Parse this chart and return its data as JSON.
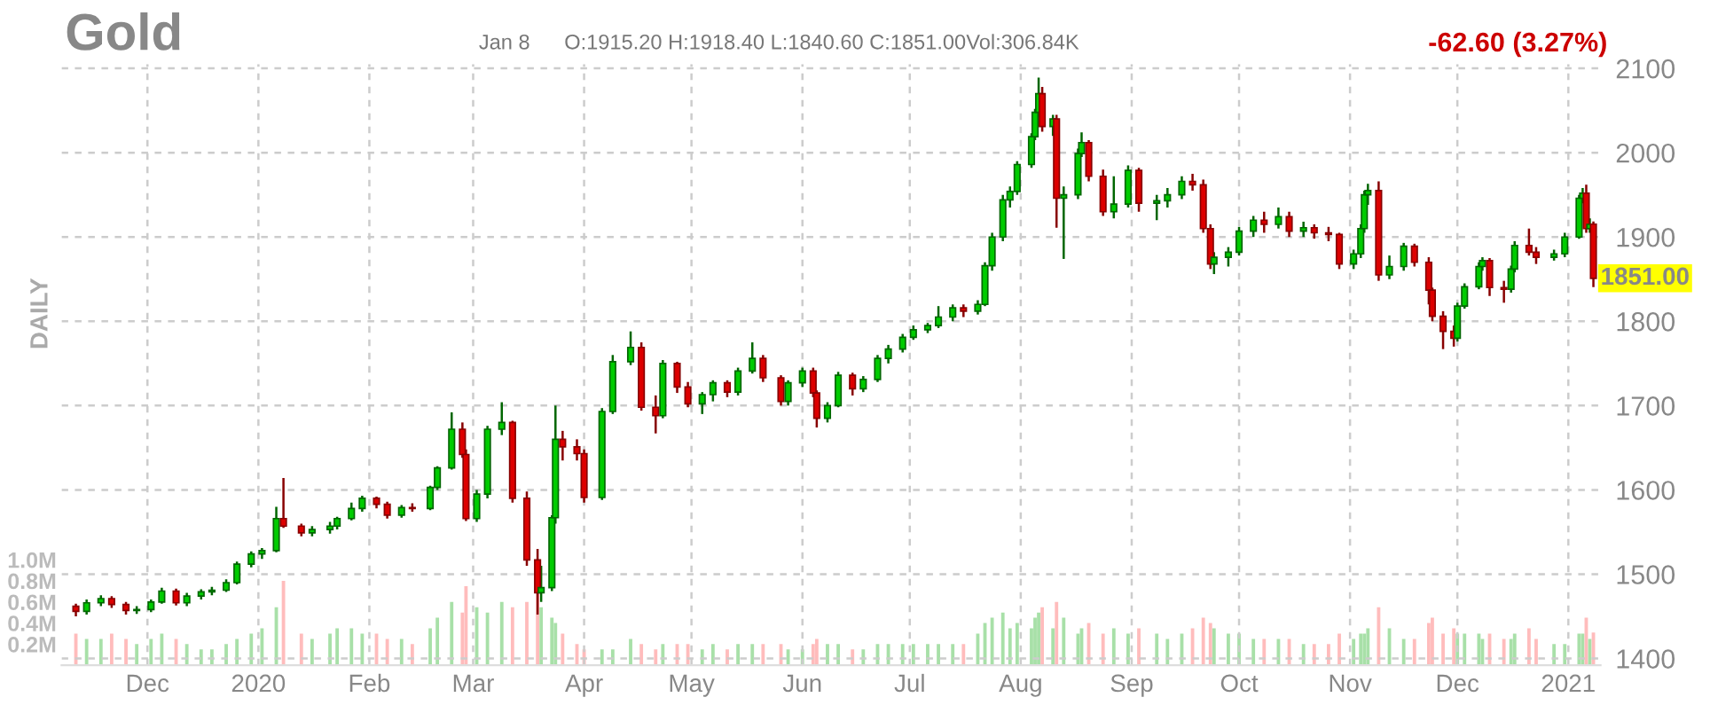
{
  "chart_data": {
    "type": "candlestick",
    "title": "Gold",
    "annotations": [
      "Jan 8",
      "O:1915.20 H:1918.40 L:1840.60 C:1851.00",
      "Vol:306.84K",
      "-62.60 (3.27%)",
      "DAILY",
      {
        "text": "1851.00",
        "x": "2021-01-08",
        "y": 1851
      }
    ],
    "x": [
      "2019-11-11",
      "2019-11-14",
      "2019-11-18",
      "2019-11-21",
      "2019-11-25",
      "2019-11-28",
      "2019-12-02",
      "2019-12-05",
      "2019-12-09",
      "2019-12-12",
      "2019-12-16",
      "2019-12-19",
      "2019-12-23",
      "2019-12-26",
      "2019-12-30",
      "2020-01-02",
      "2020-01-06",
      "2020-01-08",
      "2020-01-13",
      "2020-01-16",
      "2020-01-21",
      "2020-01-23",
      "2020-01-27",
      "2020-01-30",
      "2020-02-03",
      "2020-02-06",
      "2020-02-10",
      "2020-02-13",
      "2020-02-18",
      "2020-02-20",
      "2020-02-24",
      "2020-02-27",
      "2020-02-28",
      "2020-03-02",
      "2020-03-05",
      "2020-03-09",
      "2020-03-12",
      "2020-03-16",
      "2020-03-19",
      "2020-03-20",
      "2020-03-23",
      "2020-03-24",
      "2020-03-26",
      "2020-03-30",
      "2020-04-01",
      "2020-04-06",
      "2020-04-09",
      "2020-04-14",
      "2020-04-17",
      "2020-04-21",
      "2020-04-23",
      "2020-04-27",
      "2020-04-30",
      "2020-05-04",
      "2020-05-07",
      "2020-05-11",
      "2020-05-14",
      "2020-05-18",
      "2020-05-21",
      "2020-05-26",
      "2020-05-28",
      "2020-06-01",
      "2020-06-04",
      "2020-06-05",
      "2020-06-08",
      "2020-06-11",
      "2020-06-15",
      "2020-06-18",
      "2020-06-22",
      "2020-06-25",
      "2020-06-29",
      "2020-07-02",
      "2020-07-06",
      "2020-07-09",
      "2020-07-13",
      "2020-07-16",
      "2020-07-20",
      "2020-07-22",
      "2020-07-24",
      "2020-07-27",
      "2020-07-29",
      "2020-07-31",
      "2020-08-04",
      "2020-08-05",
      "2020-08-06",
      "2020-08-07",
      "2020-08-10",
      "2020-08-11",
      "2020-08-13",
      "2020-08-17",
      "2020-08-18",
      "2020-08-20",
      "2020-08-24",
      "2020-08-27",
      "2020-08-31",
      "2020-09-03",
      "2020-09-08",
      "2020-09-11",
      "2020-09-15",
      "2020-09-18",
      "2020-09-21",
      "2020-09-23",
      "2020-09-24",
      "2020-09-28",
      "2020-10-01",
      "2020-10-05",
      "2020-10-08",
      "2020-10-12",
      "2020-10-15",
      "2020-10-19",
      "2020-10-22",
      "2020-10-26",
      "2020-10-29",
      "2020-11-02",
      "2020-11-04",
      "2020-11-05",
      "2020-11-06",
      "2020-11-09",
      "2020-11-12",
      "2020-11-16",
      "2020-11-19",
      "2020-11-23",
      "2020-11-24",
      "2020-11-27",
      "2020-11-30",
      "2020-12-01",
      "2020-12-03",
      "2020-12-07",
      "2020-12-08",
      "2020-12-10",
      "2020-12-14",
      "2020-12-16",
      "2020-12-17",
      "2020-12-21",
      "2020-12-23",
      "2020-12-28",
      "2020-12-31",
      "2021-01-04",
      "2021-01-05",
      "2021-01-06",
      "2021-01-07",
      "2021-01-08"
    ],
    "ohlc": [
      [
        1462,
        1465,
        1450,
        1456
      ],
      [
        1456,
        1470,
        1452,
        1466
      ],
      [
        1466,
        1475,
        1462,
        1471
      ],
      [
        1471,
        1474,
        1460,
        1464
      ],
      [
        1464,
        1467,
        1452,
        1457
      ],
      [
        1457,
        1462,
        1453,
        1458
      ],
      [
        1458,
        1470,
        1455,
        1467
      ],
      [
        1467,
        1484,
        1465,
        1480
      ],
      [
        1480,
        1483,
        1463,
        1466
      ],
      [
        1466,
        1478,
        1462,
        1474
      ],
      [
        1474,
        1482,
        1470,
        1479
      ],
      [
        1479,
        1485,
        1475,
        1481
      ],
      [
        1481,
        1494,
        1479,
        1490
      ],
      [
        1490,
        1515,
        1488,
        1512
      ],
      [
        1512,
        1527,
        1508,
        1524
      ],
      [
        1524,
        1531,
        1518,
        1528
      ],
      [
        1528,
        1580,
        1526,
        1566
      ],
      [
        1566,
        1614,
        1555,
        1557
      ],
      [
        1557,
        1560,
        1545,
        1549
      ],
      [
        1549,
        1557,
        1545,
        1553
      ],
      [
        1553,
        1562,
        1548,
        1557
      ],
      [
        1557,
        1568,
        1553,
        1566
      ],
      [
        1566,
        1585,
        1564,
        1578
      ],
      [
        1578,
        1593,
        1574,
        1590
      ],
      [
        1590,
        1592,
        1578,
        1583
      ],
      [
        1583,
        1586,
        1566,
        1570
      ],
      [
        1570,
        1582,
        1567,
        1579
      ],
      [
        1579,
        1584,
        1574,
        1578
      ],
      [
        1578,
        1605,
        1576,
        1603
      ],
      [
        1603,
        1628,
        1600,
        1626
      ],
      [
        1626,
        1692,
        1624,
        1672
      ],
      [
        1672,
        1680,
        1638,
        1642
      ],
      [
        1642,
        1648,
        1563,
        1566
      ],
      [
        1566,
        1600,
        1562,
        1595
      ],
      [
        1595,
        1676,
        1590,
        1672
      ],
      [
        1672,
        1704,
        1665,
        1680
      ],
      [
        1680,
        1682,
        1585,
        1590
      ],
      [
        1590,
        1598,
        1510,
        1517
      ],
      [
        1517,
        1530,
        1452,
        1478
      ],
      [
        1478,
        1510,
        1467,
        1484
      ],
      [
        1484,
        1570,
        1480,
        1567
      ],
      [
        1567,
        1700,
        1560,
        1660
      ],
      [
        1660,
        1670,
        1635,
        1651
      ],
      [
        1651,
        1660,
        1635,
        1643
      ],
      [
        1643,
        1648,
        1585,
        1591
      ],
      [
        1591,
        1697,
        1588,
        1693
      ],
      [
        1693,
        1760,
        1690,
        1752
      ],
      [
        1752,
        1788,
        1748,
        1769
      ],
      [
        1769,
        1775,
        1694,
        1698
      ],
      [
        1698,
        1712,
        1667,
        1688
      ],
      [
        1688,
        1754,
        1685,
        1750
      ],
      [
        1750,
        1752,
        1715,
        1722
      ],
      [
        1722,
        1728,
        1698,
        1702
      ],
      [
        1702,
        1716,
        1690,
        1713
      ],
      [
        1713,
        1730,
        1705,
        1727
      ],
      [
        1727,
        1730,
        1710,
        1716
      ],
      [
        1716,
        1745,
        1712,
        1741
      ],
      [
        1741,
        1775,
        1738,
        1756
      ],
      [
        1756,
        1760,
        1728,
        1733
      ],
      [
        1733,
        1736,
        1700,
        1705
      ],
      [
        1705,
        1730,
        1700,
        1727
      ],
      [
        1727,
        1745,
        1722,
        1741
      ],
      [
        1741,
        1745,
        1710,
        1715
      ],
      [
        1715,
        1718,
        1674,
        1685
      ],
      [
        1685,
        1704,
        1680,
        1700
      ],
      [
        1700,
        1740,
        1698,
        1736
      ],
      [
        1736,
        1739,
        1712,
        1720
      ],
      [
        1720,
        1735,
        1716,
        1731
      ],
      [
        1731,
        1760,
        1728,
        1756
      ],
      [
        1756,
        1772,
        1750,
        1767
      ],
      [
        1767,
        1785,
        1763,
        1781
      ],
      [
        1781,
        1795,
        1778,
        1790
      ],
      [
        1790,
        1798,
        1786,
        1795
      ],
      [
        1795,
        1818,
        1792,
        1805
      ],
      [
        1805,
        1820,
        1800,
        1816
      ],
      [
        1816,
        1820,
        1805,
        1812
      ],
      [
        1812,
        1825,
        1808,
        1820
      ],
      [
        1820,
        1870,
        1818,
        1866
      ],
      [
        1866,
        1905,
        1860,
        1900
      ],
      [
        1900,
        1950,
        1895,
        1944
      ],
      [
        1944,
        1960,
        1935,
        1954
      ],
      [
        1954,
        1990,
        1950,
        1986
      ],
      [
        1986,
        2023,
        1982,
        2019
      ],
      [
        2019,
        2052,
        2015,
        2048
      ],
      [
        2048,
        2089,
        2042,
        2070
      ],
      [
        2070,
        2078,
        2025,
        2031
      ],
      [
        2031,
        2045,
        2020,
        2040
      ],
      [
        2040,
        2045,
        1911,
        1946
      ],
      [
        1946,
        1960,
        1874,
        1950
      ],
      [
        1950,
        2005,
        1945,
        1999
      ],
      [
        1999,
        2024,
        1995,
        2012
      ],
      [
        2012,
        2015,
        1966,
        1972
      ],
      [
        1972,
        1980,
        1925,
        1930
      ],
      [
        1930,
        1972,
        1922,
        1939
      ],
      [
        1939,
        1985,
        1935,
        1979
      ],
      [
        1979,
        1982,
        1930,
        1940
      ],
      [
        1940,
        1950,
        1920,
        1943
      ],
      [
        1943,
        1958,
        1935,
        1950
      ],
      [
        1950,
        1972,
        1945,
        1966
      ],
      [
        1966,
        1975,
        1955,
        1962
      ],
      [
        1962,
        1968,
        1905,
        1910
      ],
      [
        1910,
        1915,
        1862,
        1868
      ],
      [
        1868,
        1882,
        1856,
        1876
      ],
      [
        1876,
        1888,
        1865,
        1882
      ],
      [
        1882,
        1912,
        1878,
        1907
      ],
      [
        1907,
        1925,
        1900,
        1920
      ],
      [
        1920,
        1930,
        1905,
        1915
      ],
      [
        1915,
        1935,
        1910,
        1924
      ],
      [
        1924,
        1930,
        1900,
        1907
      ],
      [
        1907,
        1918,
        1900,
        1911
      ],
      [
        1911,
        1915,
        1898,
        1905
      ],
      [
        1905,
        1912,
        1895,
        1903
      ],
      [
        1903,
        1905,
        1862,
        1868
      ],
      [
        1868,
        1885,
        1862,
        1880
      ],
      [
        1880,
        1915,
        1875,
        1910
      ],
      [
        1910,
        1955,
        1905,
        1950
      ],
      [
        1950,
        1963,
        1938,
        1955
      ],
      [
        1955,
        1966,
        1848,
        1855
      ],
      [
        1855,
        1878,
        1850,
        1865
      ],
      [
        1865,
        1893,
        1860,
        1889
      ],
      [
        1889,
        1892,
        1865,
        1870
      ],
      [
        1870,
        1876,
        1820,
        1837
      ],
      [
        1837,
        1840,
        1800,
        1806
      ],
      [
        1806,
        1812,
        1767,
        1788
      ],
      [
        1788,
        1795,
        1770,
        1780
      ],
      [
        1780,
        1822,
        1776,
        1818
      ],
      [
        1818,
        1845,
        1815,
        1841
      ],
      [
        1841,
        1870,
        1838,
        1865
      ],
      [
        1865,
        1876,
        1860,
        1872
      ],
      [
        1872,
        1875,
        1830,
        1840
      ],
      [
        1840,
        1848,
        1822,
        1838
      ],
      [
        1838,
        1866,
        1834,
        1862
      ],
      [
        1862,
        1895,
        1858,
        1890
      ],
      [
        1890,
        1910,
        1878,
        1882
      ],
      [
        1882,
        1888,
        1868,
        1876
      ],
      [
        1876,
        1885,
        1872,
        1880
      ],
      [
        1880,
        1905,
        1876,
        1900
      ],
      [
        1900,
        1950,
        1898,
        1946
      ],
      [
        1946,
        1958,
        1940,
        1952
      ],
      [
        1952,
        1962,
        1905,
        1910
      ],
      [
        1910,
        1922,
        1905,
        1915
      ],
      [
        1915.2,
        1918.4,
        1840.6,
        1851
      ]
    ],
    "colors": [
      "#dd0000",
      "#00cc00",
      "#00cc00",
      "#dd0000",
      "#dd0000",
      "#00cc00",
      "#00cc00",
      "#00cc00",
      "#dd0000",
      "#00cc00",
      "#00cc00",
      "#00cc00",
      "#00cc00",
      "#00cc00",
      "#00cc00",
      "#00cc00",
      "#00cc00",
      "#dd0000",
      "#dd0000",
      "#00cc00",
      "#00cc00",
      "#00cc00",
      "#00cc00",
      "#00cc00",
      "#dd0000",
      "#dd0000",
      "#00cc00",
      "#dd0000",
      "#00cc00",
      "#00cc00",
      "#00cc00",
      "#dd0000",
      "#dd0000",
      "#00cc00",
      "#00cc00",
      "#00cc00",
      "#dd0000",
      "#dd0000",
      "#dd0000",
      "#00cc00",
      "#00cc00",
      "#00cc00",
      "#dd0000",
      "#dd0000",
      "#dd0000",
      "#00cc00",
      "#00cc00",
      "#00cc00",
      "#dd0000",
      "#dd0000",
      "#00cc00",
      "#dd0000",
      "#dd0000",
      "#00cc00",
      "#00cc00",
      "#dd0000",
      "#00cc00",
      "#00cc00",
      "#dd0000",
      "#dd0000",
      "#00cc00",
      "#00cc00",
      "#dd0000",
      "#dd0000",
      "#00cc00",
      "#00cc00",
      "#dd0000",
      "#00cc00",
      "#00cc00",
      "#00cc00",
      "#00cc00",
      "#00cc00",
      "#00cc00",
      "#00cc00",
      "#00cc00",
      "#dd0000",
      "#00cc00",
      "#00cc00",
      "#00cc00",
      "#00cc00",
      "#00cc00",
      "#00cc00",
      "#00cc00",
      "#00cc00",
      "#00cc00",
      "#dd0000",
      "#00cc00",
      "#dd0000",
      "#00cc00",
      "#00cc00",
      "#00cc00",
      "#dd0000",
      "#dd0000",
      "#00cc00",
      "#00cc00",
      "#dd0000",
      "#00cc00",
      "#00cc00",
      "#00cc00",
      "#dd0000",
      "#dd0000",
      "#dd0000",
      "#00cc00",
      "#00cc00",
      "#00cc00",
      "#00cc00",
      "#dd0000",
      "#00cc00",
      "#dd0000",
      "#00cc00",
      "#dd0000",
      "#dd0000",
      "#dd0000",
      "#00cc00",
      "#00cc00",
      "#00cc00",
      "#00cc00",
      "#dd0000",
      "#00cc00",
      "#00cc00",
      "#dd0000",
      "#dd0000",
      "#dd0000",
      "#dd0000",
      "#dd0000",
      "#00cc00",
      "#00cc00",
      "#00cc00",
      "#00cc00",
      "#dd0000",
      "#dd0000",
      "#00cc00",
      "#00cc00",
      "#dd0000",
      "#dd0000",
      "#00cc00",
      "#00cc00",
      "#00cc00",
      "#00cc00",
      "#dd0000",
      "#00cc00",
      "#dd0000"
    ],
    "series": [
      {
        "type": "bar",
        "axis": "y2",
        "values": [
          0.3,
          0.25,
          0.25,
          0.3,
          0.25,
          0.2,
          0.25,
          0.3,
          0.25,
          0.2,
          0.15,
          0.15,
          0.2,
          0.25,
          0.3,
          0.35,
          0.55,
          0.8,
          0.3,
          0.25,
          0.3,
          0.35,
          0.35,
          0.3,
          0.3,
          0.25,
          0.25,
          0.2,
          0.35,
          0.45,
          0.6,
          0.5,
          0.75,
          0.55,
          0.5,
          0.6,
          0.55,
          0.6,
          0.7,
          0.55,
          0.45,
          0.4,
          0.3,
          0.2,
          0.15,
          0.15,
          0.15,
          0.25,
          0.2,
          0.15,
          0.2,
          0.2,
          0.2,
          0.15,
          0.2,
          0.15,
          0.2,
          0.2,
          0.2,
          0.2,
          0.15,
          0.15,
          0.2,
          0.25,
          0.2,
          0.2,
          0.15,
          0.15,
          0.2,
          0.2,
          0.2,
          0.2,
          0.2,
          0.2,
          0.2,
          0.2,
          0.3,
          0.4,
          0.45,
          0.5,
          0.35,
          0.4,
          0.35,
          0.45,
          0.5,
          0.55,
          0.35,
          0.6,
          0.45,
          0.3,
          0.35,
          0.4,
          0.3,
          0.35,
          0.3,
          0.35,
          0.3,
          0.25,
          0.3,
          0.35,
          0.45,
          0.4,
          0.35,
          0.3,
          0.3,
          0.25,
          0.25,
          0.25,
          0.25,
          0.2,
          0.2,
          0.2,
          0.3,
          0.25,
          0.3,
          0.3,
          0.35,
          0.55,
          0.35,
          0.25,
          0.25,
          0.4,
          0.45,
          0.3,
          0.35,
          0.3,
          0.3,
          0.3,
          0.25,
          0.3,
          0.25,
          0.25,
          0.3,
          0.35,
          0.25,
          0.2,
          0.2,
          0.3,
          0.3,
          0.45,
          0.25,
          0.31
        ],
        "colors": [
          "#ffbcbc",
          "#a8e0a8",
          "#a8e0a8",
          "#ffbcbc",
          "#ffbcbc",
          "#a8e0a8",
          "#a8e0a8",
          "#a8e0a8",
          "#ffbcbc",
          "#a8e0a8",
          "#a8e0a8",
          "#a8e0a8",
          "#a8e0a8",
          "#a8e0a8",
          "#a8e0a8",
          "#a8e0a8",
          "#a8e0a8",
          "#ffbcbc",
          "#ffbcbc",
          "#a8e0a8",
          "#a8e0a8",
          "#a8e0a8",
          "#a8e0a8",
          "#a8e0a8",
          "#ffbcbc",
          "#ffbcbc",
          "#a8e0a8",
          "#ffbcbc",
          "#a8e0a8",
          "#a8e0a8",
          "#a8e0a8",
          "#ffbcbc",
          "#ffbcbc",
          "#a8e0a8",
          "#a8e0a8",
          "#a8e0a8",
          "#ffbcbc",
          "#ffbcbc",
          "#ffbcbc",
          "#a8e0a8",
          "#a8e0a8",
          "#a8e0a8",
          "#ffbcbc",
          "#ffbcbc",
          "#ffbcbc",
          "#a8e0a8",
          "#a8e0a8",
          "#a8e0a8",
          "#ffbcbc",
          "#ffbcbc",
          "#a8e0a8",
          "#ffbcbc",
          "#ffbcbc",
          "#a8e0a8",
          "#a8e0a8",
          "#ffbcbc",
          "#a8e0a8",
          "#a8e0a8",
          "#ffbcbc",
          "#ffbcbc",
          "#a8e0a8",
          "#a8e0a8",
          "#ffbcbc",
          "#ffbcbc",
          "#a8e0a8",
          "#a8e0a8",
          "#ffbcbc",
          "#a8e0a8",
          "#a8e0a8",
          "#a8e0a8",
          "#a8e0a8",
          "#a8e0a8",
          "#a8e0a8",
          "#a8e0a8",
          "#a8e0a8",
          "#ffbcbc",
          "#a8e0a8",
          "#a8e0a8",
          "#a8e0a8",
          "#a8e0a8",
          "#a8e0a8",
          "#a8e0a8",
          "#a8e0a8",
          "#a8e0a8",
          "#a8e0a8",
          "#ffbcbc",
          "#a8e0a8",
          "#ffbcbc",
          "#a8e0a8",
          "#a8e0a8",
          "#a8e0a8",
          "#ffbcbc",
          "#ffbcbc",
          "#a8e0a8",
          "#a8e0a8",
          "#ffbcbc",
          "#a8e0a8",
          "#a8e0a8",
          "#a8e0a8",
          "#ffbcbc",
          "#ffbcbc",
          "#ffbcbc",
          "#a8e0a8",
          "#a8e0a8",
          "#a8e0a8",
          "#a8e0a8",
          "#ffbcbc",
          "#a8e0a8",
          "#ffbcbc",
          "#a8e0a8",
          "#ffbcbc",
          "#ffbcbc",
          "#ffbcbc",
          "#a8e0a8",
          "#a8e0a8",
          "#a8e0a8",
          "#a8e0a8",
          "#ffbcbc",
          "#a8e0a8",
          "#a8e0a8",
          "#ffbcbc",
          "#ffbcbc",
          "#ffbcbc",
          "#ffbcbc",
          "#ffbcbc",
          "#a8e0a8",
          "#a8e0a8",
          "#a8e0a8",
          "#a8e0a8",
          "#ffbcbc",
          "#ffbcbc",
          "#a8e0a8",
          "#a8e0a8",
          "#ffbcbc",
          "#ffbcbc",
          "#a8e0a8",
          "#a8e0a8",
          "#a8e0a8",
          "#a8e0a8",
          "#ffbcbc",
          "#a8e0a8",
          "#ffbcbc"
        ]
      }
    ],
    "xlim": [
      "2019-11-07",
      "2021-01-10"
    ],
    "xticks": [
      {
        "value": "2019-12-01",
        "label": "Dec"
      },
      {
        "value": "2020-01-01",
        "label": "2020"
      },
      {
        "value": "2020-02-01",
        "label": "Feb"
      },
      {
        "value": "2020-03-01",
        "label": "Mar"
      },
      {
        "value": "2020-04-01",
        "label": "Apr"
      },
      {
        "value": "2020-05-01",
        "label": "May"
      },
      {
        "value": "2020-06-01",
        "label": "Jun"
      },
      {
        "value": "2020-07-01",
        "label": "Jul"
      },
      {
        "value": "2020-08-01",
        "label": "Aug"
      },
      {
        "value": "2020-09-01",
        "label": "Sep"
      },
      {
        "value": "2020-10-01",
        "label": "Oct"
      },
      {
        "value": "2020-11-01",
        "label": "Nov"
      },
      {
        "value": "2020-12-01",
        "label": "Dec"
      },
      {
        "value": "2021-01-01",
        "label": "2021"
      }
    ],
    "ylim": [
      1392,
      2105
    ],
    "yticks": [
      1400,
      1500,
      1600,
      1700,
      1800,
      1900,
      2000,
      2100
    ],
    "y2lim": [
      0,
      5.7
    ],
    "y2ticks": [
      {
        "value": 0.2,
        "label": "0.2M"
      },
      {
        "value": 0.4,
        "label": "0.4M"
      },
      {
        "value": 0.6,
        "label": "0.6M"
      },
      {
        "value": 0.8,
        "label": "0.8M"
      },
      {
        "value": 1.0,
        "label": "1.0M"
      }
    ],
    "grid": true
  }
}
